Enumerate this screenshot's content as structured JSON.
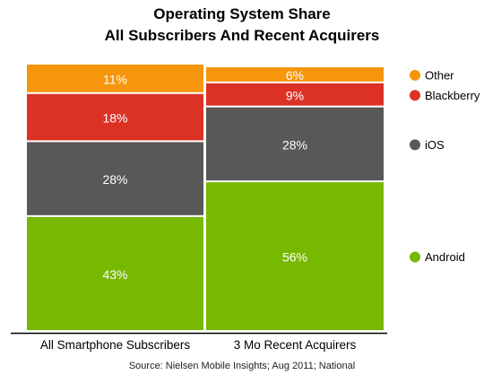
{
  "chart_data": {
    "type": "bar",
    "stacked": true,
    "title": "Operating System Share",
    "subtitle": "All Subscribers And Recent Acquirers",
    "categories": [
      "All Smartphone Subscribers",
      "3 Mo Recent Acquirers"
    ],
    "series": [
      {
        "name": "Android",
        "values": [
          43,
          56
        ],
        "labels": [
          "43%",
          "56%"
        ],
        "color": "#77b800"
      },
      {
        "name": "iOS",
        "values": [
          28,
          28
        ],
        "labels": [
          "28%",
          "28%"
        ],
        "color": "#585858"
      },
      {
        "name": "Blackberry",
        "values": [
          18,
          9
        ],
        "labels": [
          "18%",
          "9%"
        ],
        "color": "#dc3226"
      },
      {
        "name": "Other",
        "values": [
          11,
          6
        ],
        "labels": [
          "11%",
          "6%"
        ],
        "color": "#f5960c"
      }
    ],
    "ylim": [
      0,
      100
    ],
    "legend_position": "right",
    "source": "Source: Nielsen Mobile Insights; Aug 2011; National"
  }
}
